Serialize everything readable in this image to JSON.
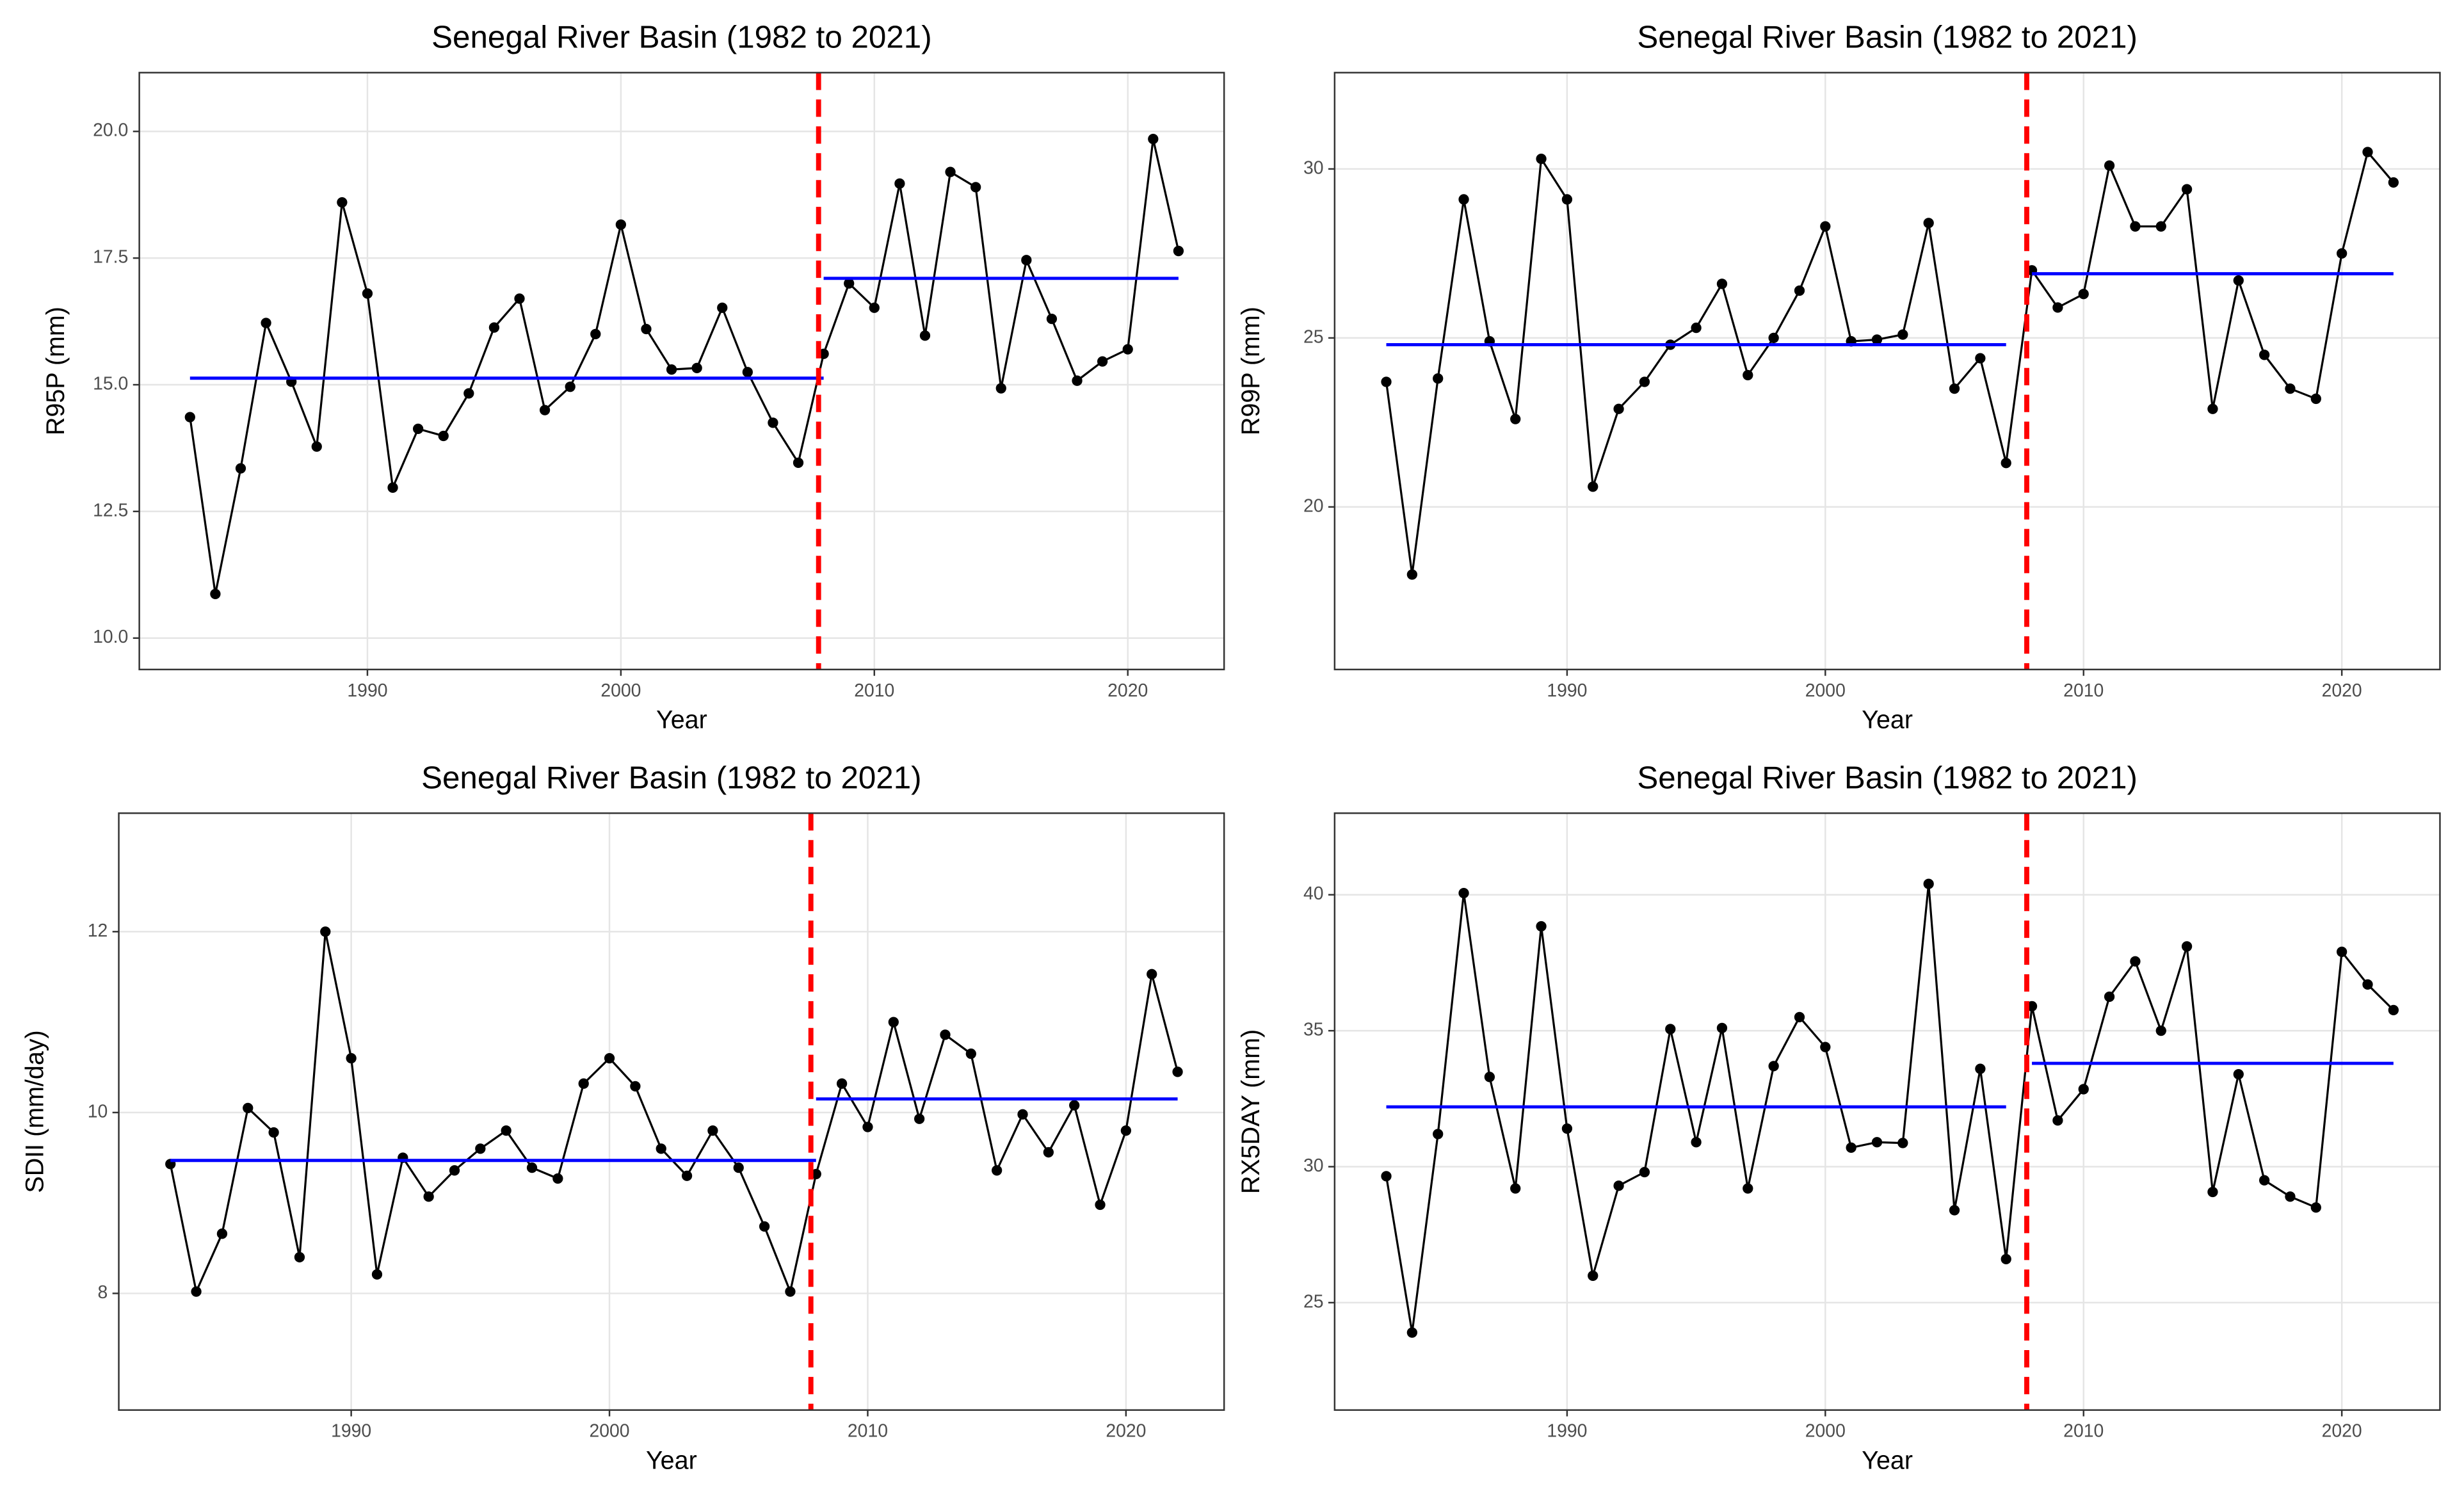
{
  "chart_data": [
    {
      "type": "line",
      "title": "Senegal River Basin (1982 to 2021)",
      "x_label": "Year",
      "y_label": "R95P (mm)",
      "x": [
        1983,
        1984,
        1985,
        1986,
        1987,
        1988,
        1989,
        1990,
        1991,
        1992,
        1993,
        1994,
        1995,
        1996,
        1997,
        1998,
        1999,
        2000,
        2001,
        2002,
        2003,
        2004,
        2005,
        2006,
        2007,
        2008,
        2009,
        2010,
        2011,
        2012,
        2013,
        2014,
        2015,
        2016,
        2017,
        2018,
        2019,
        2020,
        2021,
        2022
      ],
      "series": [
        {
          "color": "#000000",
          "values": [
            14.36,
            10.87,
            13.35,
            16.22,
            15.06,
            13.78,
            18.6,
            16.8,
            12.97,
            14.13,
            13.99,
            14.83,
            16.13,
            16.7,
            14.5,
            14.96,
            16.0,
            18.16,
            16.1,
            15.3,
            15.33,
            16.52,
            15.25,
            14.25,
            13.46,
            15.61,
            17.0,
            16.52,
            18.97,
            15.97,
            19.2,
            18.9,
            14.93,
            17.46,
            16.3,
            15.08,
            15.46,
            15.7,
            19.85,
            17.64
          ]
        }
      ],
      "means": [
        {
          "value": 15.13,
          "x": [
            1983,
            2008
          ]
        },
        {
          "value": 17.1,
          "x": [
            2008,
            2022
          ]
        }
      ],
      "mean_color": "#0000ff",
      "change_point": 2007.8,
      "change_color": "#ff0000",
      "xlim": [
        1981,
        2023.8
      ],
      "ylim": [
        9.38,
        21.16
      ],
      "xticks": [
        1990,
        2000,
        2010,
        2020
      ],
      "yticks": [
        {
          "value": 10,
          "label": "10.0"
        },
        12.5,
        {
          "value": 15,
          "label": "15.0"
        },
        17.5,
        {
          "value": 20,
          "label": "20.0"
        }
      ],
      "grid": true
    },
    {
      "type": "line",
      "title": "Senegal River Basin (1982 to 2021)",
      "x_label": "Year",
      "y_label": "R99P (mm)",
      "x": [
        1983,
        1984,
        1985,
        1986,
        1987,
        1988,
        1989,
        1990,
        1991,
        1992,
        1993,
        1994,
        1995,
        1996,
        1997,
        1998,
        1999,
        2000,
        2001,
        2002,
        2003,
        2004,
        2005,
        2006,
        2007,
        2008,
        2009,
        2010,
        2011,
        2012,
        2013,
        2014,
        2015,
        2016,
        2017,
        2018,
        2019,
        2020,
        2021,
        2022
      ],
      "series": [
        {
          "color": "#000000",
          "values": [
            23.7,
            18.0,
            23.8,
            29.1,
            24.9,
            22.6,
            30.3,
            29.1,
            20.6,
            22.9,
            23.7,
            24.8,
            25.3,
            26.6,
            23.9,
            25.0,
            26.4,
            28.3,
            24.9,
            24.95,
            25.1,
            28.4,
            23.5,
            24.4,
            21.3,
            27.0,
            25.9,
            26.3,
            30.1,
            28.3,
            28.3,
            29.4,
            22.9,
            26.7,
            24.5,
            23.5,
            23.2,
            27.5,
            30.5,
            29.6
          ]
        }
      ],
      "means": [
        {
          "value": 24.8,
          "x": [
            1983,
            2007
          ]
        },
        {
          "value": 26.9,
          "x": [
            2008,
            2022
          ]
        }
      ],
      "mean_color": "#0000ff",
      "change_point": 2007.8,
      "change_color": "#ff0000",
      "xlim": [
        1981,
        2023.8
      ],
      "ylim": [
        15.19,
        32.85
      ],
      "xticks": [
        1990,
        2000,
        2010,
        2020
      ],
      "yticks": [
        20,
        25,
        30
      ],
      "grid": true
    },
    {
      "type": "line",
      "title": "Senegal River Basin (1982 to 2021)",
      "x_label": "Year",
      "y_label": "SDII (mm/day)",
      "x": [
        1983,
        1984,
        1985,
        1986,
        1987,
        1988,
        1989,
        1990,
        1991,
        1992,
        1993,
        1994,
        1995,
        1996,
        1997,
        1998,
        1999,
        2000,
        2001,
        2002,
        2003,
        2004,
        2005,
        2006,
        2007,
        2008,
        2009,
        2010,
        2011,
        2012,
        2013,
        2014,
        2015,
        2016,
        2017,
        2018,
        2019,
        2020,
        2021,
        2022
      ],
      "series": [
        {
          "color": "#000000",
          "values": [
            9.43,
            8.02,
            8.66,
            10.05,
            9.78,
            8.4,
            12.0,
            10.6,
            8.21,
            9.5,
            9.07,
            9.36,
            9.6,
            9.8,
            9.39,
            9.27,
            10.32,
            10.6,
            10.29,
            9.6,
            9.3,
            9.8,
            9.39,
            8.74,
            8.02,
            9.32,
            10.32,
            9.84,
            11.0,
            9.93,
            10.86,
            10.65,
            9.36,
            9.98,
            9.56,
            10.08,
            8.98,
            9.8,
            11.53,
            10.45
          ]
        }
      ],
      "means": [
        {
          "value": 9.47,
          "x": [
            1983,
            2008
          ]
        },
        {
          "value": 10.15,
          "x": [
            2008,
            2022
          ]
        }
      ],
      "mean_color": "#0000ff",
      "change_point": 2007.8,
      "change_color": "#ff0000",
      "xlim": [
        1981,
        2023.8
      ],
      "ylim": [
        6.71,
        13.31
      ],
      "xticks": [
        1990,
        2000,
        2010,
        2020
      ],
      "yticks": [
        8,
        10,
        12
      ],
      "grid": true
    },
    {
      "type": "line",
      "title": "Senegal River Basin (1982 to 2021)",
      "x_label": "Year",
      "y_label": "RX5DAY (mm)",
      "x": [
        1983,
        1984,
        1985,
        1986,
        1987,
        1988,
        1989,
        1990,
        1991,
        1992,
        1993,
        1994,
        1995,
        1996,
        1997,
        1998,
        1999,
        2000,
        2001,
        2002,
        2003,
        2004,
        2005,
        2006,
        2007,
        2008,
        2009,
        2010,
        2011,
        2012,
        2013,
        2014,
        2015,
        2016,
        2017,
        2018,
        2019,
        2020,
        2021,
        2022
      ],
      "series": [
        {
          "color": "#000000",
          "values": [
            29.65,
            23.9,
            31.2,
            40.06,
            33.3,
            29.2,
            38.84,
            31.4,
            25.99,
            29.3,
            29.8,
            35.06,
            30.9,
            35.1,
            29.2,
            33.7,
            35.5,
            34.4,
            30.7,
            30.9,
            30.87,
            40.4,
            28.4,
            33.6,
            26.6,
            35.9,
            31.7,
            32.85,
            36.25,
            37.55,
            35.0,
            38.1,
            29.07,
            33.4,
            29.5,
            28.9,
            28.5,
            37.9,
            36.7,
            35.76
          ]
        }
      ],
      "means": [
        {
          "value": 32.2,
          "x": [
            1983,
            2007
          ]
        },
        {
          "value": 33.8,
          "x": [
            2008,
            2022
          ]
        }
      ],
      "mean_color": "#0000ff",
      "change_point": 2007.8,
      "change_color": "#ff0000",
      "xlim": [
        1981,
        2023.8
      ],
      "ylim": [
        21.05,
        43.0
      ],
      "xticks": [
        1990,
        2000,
        2010,
        2020
      ],
      "yticks": [
        25,
        30,
        35,
        40
      ],
      "grid": true
    }
  ]
}
